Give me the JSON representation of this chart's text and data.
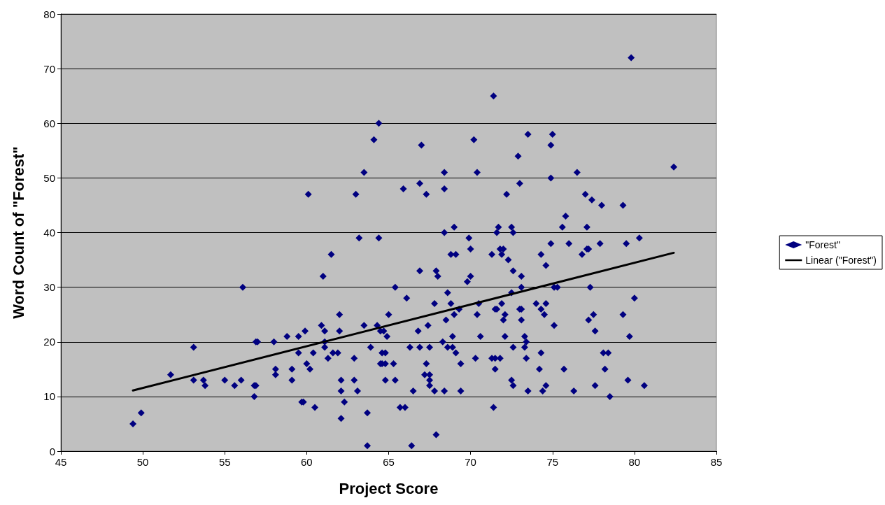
{
  "chart_data": {
    "type": "scatter",
    "xlabel": "Project Score",
    "ylabel": "Word Count of \"Forest\"",
    "xlim": [
      45,
      85
    ],
    "xticks": [
      45,
      50,
      55,
      60,
      65,
      70,
      75,
      80,
      85
    ],
    "ylim": [
      0,
      80
    ],
    "yticks": [
      0,
      10,
      20,
      30,
      40,
      50,
      60,
      70,
      80
    ],
    "grid": "y",
    "legend": "right",
    "marker": "diamond",
    "series": [
      {
        "name": "\"Forest\"",
        "color": "#000080",
        "x": [
          49.4,
          49.9,
          51.7,
          53.1,
          53.1,
          53.7,
          53.8,
          55,
          55.6,
          56,
          56.1,
          56.8,
          56.9,
          56.8,
          56.9,
          57,
          58,
          58.1,
          58.1,
          58.8,
          59.1,
          59.1,
          59.5,
          59.5,
          59.7,
          59.8,
          59.9,
          60,
          60.1,
          60.2,
          60.4,
          60.5,
          60.9,
          61,
          61.1,
          61.1,
          61.1,
          61.3,
          61.5,
          61.6,
          61.9,
          62,
          62,
          62.1,
          62.1,
          62.1,
          62.3,
          62.9,
          62.9,
          63,
          63.1,
          63.2,
          63.5,
          63.5,
          63.7,
          63.7,
          63.9,
          64.1,
          64.3,
          64.4,
          64.4,
          64.5,
          64.5,
          64.6,
          64.6,
          64.7,
          64.8,
          64.8,
          64.8,
          64.9,
          65,
          65.3,
          65.4,
          65.4,
          65.7,
          65.9,
          66,
          66.1,
          66.3,
          66.4,
          66.5,
          66.8,
          66.9,
          66.9,
          66.9,
          67,
          67.2,
          67.3,
          67.3,
          67.4,
          67.5,
          67.5,
          67.5,
          67.5,
          67.8,
          67.8,
          67.9,
          67.9,
          68,
          68.3,
          68.4,
          68.4,
          68.4,
          68.4,
          68.5,
          68.6,
          68.6,
          68.8,
          68.8,
          68.9,
          68.9,
          69,
          69,
          69.1,
          69.1,
          69.3,
          69.4,
          69.4,
          69.8,
          69.9,
          70,
          70,
          70.2,
          70.3,
          70.4,
          70.4,
          70.5,
          70.6,
          71.3,
          71.3,
          71.4,
          71.4,
          71.5,
          71.5,
          71.5,
          71.6,
          71.6,
          71.7,
          71.8,
          71.8,
          71.9,
          71.9,
          72,
          72,
          72.1,
          72.1,
          72.2,
          72.3,
          72.5,
          72.5,
          72.5,
          72.6,
          72.6,
          72.6,
          72.6,
          72.9,
          73,
          73,
          73.1,
          73.1,
          73.1,
          73.1,
          73.3,
          73.3,
          73.4,
          73.4,
          73.5,
          73.5,
          74,
          74.2,
          74.3,
          74.3,
          74.3,
          74.4,
          74.5,
          74.6,
          74.6,
          74.6,
          74.9,
          74.9,
          74.9,
          75,
          75.1,
          75.1,
          75.3,
          75.6,
          75.7,
          75.8,
          76,
          76.3,
          76.5,
          76.8,
          77,
          77.1,
          77.1,
          77.2,
          77.2,
          77.3,
          77.4,
          77.5,
          77.6,
          77.6,
          77.9,
          78,
          78.1,
          78.2,
          78.4,
          78.5,
          79.3,
          79.3,
          79.5,
          79.6,
          79.7,
          79.8,
          80,
          80.3,
          80.6,
          82.4
        ],
        "values": [
          5,
          7,
          14,
          19,
          13,
          13,
          12,
          13,
          12,
          13,
          30,
          12,
          12,
          10,
          20,
          20,
          20,
          15,
          14,
          21,
          15,
          13,
          18,
          21,
          9,
          9,
          22,
          16,
          47,
          15,
          18,
          8,
          23,
          32,
          20,
          22,
          19,
          17,
          36,
          18,
          18,
          22,
          25,
          13,
          11,
          6,
          9,
          17,
          13,
          47,
          11,
          39,
          51,
          23,
          1,
          7,
          19,
          57,
          23,
          60,
          39,
          16,
          22,
          18,
          16,
          22,
          13,
          16,
          18,
          21,
          25,
          16,
          30,
          13,
          8,
          48,
          8,
          28,
          19,
          1,
          11,
          22,
          49,
          33,
          19,
          56,
          14,
          16,
          47,
          23,
          14,
          13,
          19,
          12,
          27,
          11,
          33,
          3,
          32,
          20,
          11,
          51,
          48,
          40,
          24,
          29,
          19,
          27,
          36,
          21,
          19,
          41,
          25,
          18,
          36,
          26,
          16,
          11,
          31,
          39,
          37,
          32,
          57,
          17,
          51,
          25,
          27,
          21,
          36,
          17,
          65,
          8,
          26,
          17,
          15,
          26,
          40,
          41,
          17,
          37,
          27,
          36,
          37,
          24,
          21,
          25,
          47,
          35,
          41,
          13,
          29,
          12,
          40,
          33,
          19,
          54,
          49,
          26,
          30,
          26,
          24,
          32,
          21,
          19,
          20,
          17,
          58,
          11,
          27,
          15,
          36,
          26,
          18,
          11,
          25,
          12,
          34,
          27,
          56,
          50,
          38,
          58,
          30,
          23,
          30,
          41,
          15,
          43,
          38,
          11,
          51,
          36,
          47,
          37,
          41,
          24,
          37,
          30,
          46,
          25,
          22,
          12,
          38,
          45,
          18,
          15,
          18,
          10,
          45,
          25,
          38,
          13,
          21,
          72,
          28,
          39,
          12,
          52
        ]
      },
      {
        "name": "Linear (\"Forest\")",
        "type": "line",
        "color": "#000000",
        "marker": "none",
        "line_style": "solid",
        "x": [
          49.4,
          82.4
        ],
        "values": [
          11.1,
          36.3
        ]
      }
    ]
  }
}
